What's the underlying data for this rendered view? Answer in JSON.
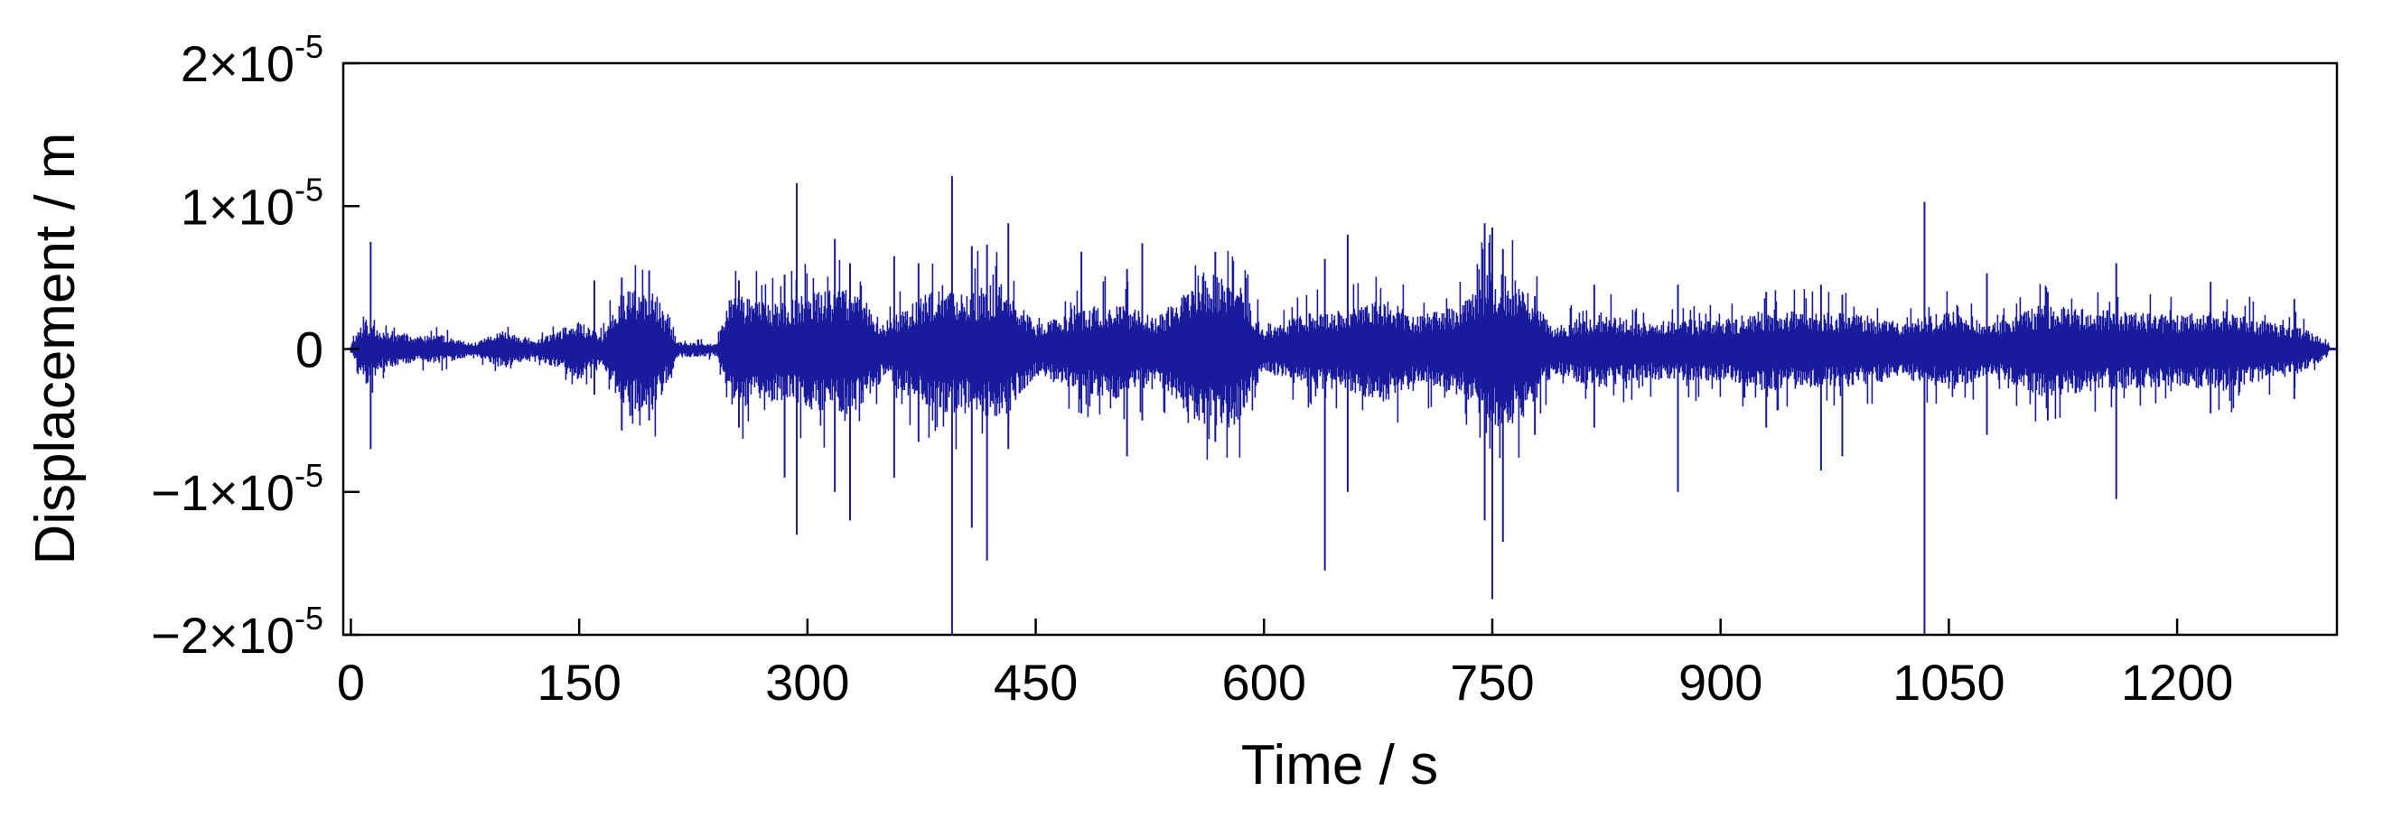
{
  "chart_data": {
    "type": "line",
    "title": "",
    "xlabel": "Time / s",
    "ylabel": "Displacement / m",
    "xlim": [
      -5,
      1305
    ],
    "ylim": [
      -2e-05,
      2e-05
    ],
    "grid": false,
    "legend": "none",
    "line_color": "#1a1a9c",
    "x_ticks": [
      {
        "value": 0,
        "label": "0"
      },
      {
        "value": 150,
        "label": "150"
      },
      {
        "value": 300,
        "label": "300"
      },
      {
        "value": 450,
        "label": "450"
      },
      {
        "value": 600,
        "label": "600"
      },
      {
        "value": 750,
        "label": "750"
      },
      {
        "value": 900,
        "label": "900"
      },
      {
        "value": 1050,
        "label": "1050"
      },
      {
        "value": 1200,
        "label": "1200"
      }
    ],
    "y_ticks": [
      {
        "value": 2e-05,
        "mantissa": "2",
        "times": "×10",
        "exp": "-5"
      },
      {
        "value": 1e-05,
        "mantissa": "1",
        "times": "×10",
        "exp": "-5"
      },
      {
        "value": 0,
        "mantissa": "0",
        "times": "",
        "exp": ""
      },
      {
        "value": -1e-05,
        "mantissa": "−1",
        "times": "×10",
        "exp": "-5"
      },
      {
        "value": -2e-05,
        "mantissa": "−2",
        "times": "×10",
        "exp": "-5"
      }
    ],
    "envelope": {
      "time_s": [
        0,
        10,
        20,
        40,
        60,
        80,
        100,
        120,
        150,
        165,
        180,
        200,
        215,
        240,
        250,
        280,
        300,
        330,
        350,
        380,
        400,
        420,
        430,
        450,
        480,
        500,
        530,
        560,
        580,
        600,
        630,
        650,
        680,
        700,
        730,
        750,
        770,
        790,
        820,
        850,
        880,
        900,
        930,
        960,
        990,
        1020,
        1050,
        1080,
        1110,
        1140,
        1170,
        1200,
        1230,
        1260,
        1280,
        1295,
        1300
      ],
      "upper_m": [
        3e-07,
        2.2e-06,
        1.2e-06,
        9e-07,
        1e-06,
        4e-07,
        1.3e-06,
        5e-07,
        2e-06,
        9e-07,
        4.6e-06,
        4e-06,
        5e-07,
        4e-07,
        4e-06,
        3.2e-06,
        4e-06,
        4.3e-06,
        1.9e-06,
        4.1e-06,
        4e-06,
        4.5e-06,
        4.6e-06,
        1.7e-06,
        2.7e-06,
        3.4e-06,
        2.2e-06,
        5.6e-06,
        5.3e-06,
        1.4e-06,
        2.6e-06,
        2.7e-06,
        3.6e-06,
        2.3e-06,
        3.1e-06,
        5.6e-06,
        4.6e-06,
        1.6e-06,
        2.6e-06,
        1.9e-06,
        2.1e-06,
        2e-06,
        2.8e-06,
        2.6e-06,
        2.5e-06,
        1.9e-06,
        2.7e-06,
        1.9e-06,
        3.1e-06,
        2.9e-06,
        2.6e-06,
        2.4e-06,
        2.8e-06,
        2e-06,
        1.6e-06,
        8e-07,
        2e-07
      ],
      "lower_m": [
        -3e-07,
        -2.6e-06,
        -1.4e-06,
        -1e-06,
        -1e-06,
        -5e-07,
        -1.4e-06,
        -6e-07,
        -2.2e-06,
        -1e-06,
        -4.8e-06,
        -4.3e-06,
        -6e-07,
        -5e-07,
        -4.2e-06,
        -3.6e-06,
        -4.2e-06,
        -4.6e-06,
        -2.1e-06,
        -4.4e-06,
        -4.5e-06,
        -4.8e-06,
        -4.8e-06,
        -1.9e-06,
        -3e-06,
        -3.6e-06,
        -2.4e-06,
        -5.5e-06,
        -5.7e-06,
        -1.6e-06,
        -2.8e-06,
        -2.9e-06,
        -3.8e-06,
        -2.5e-06,
        -3.3e-06,
        -5.8e-06,
        -4.9e-06,
        -1.8e-06,
        -2.8e-06,
        -2.1e-06,
        -2.3e-06,
        -2.2e-06,
        -3e-06,
        -2.8e-06,
        -2.7e-06,
        -2.1e-06,
        -2.9e-06,
        -2.1e-06,
        -3.3e-06,
        -3.1e-06,
        -2.8e-06,
        -2.6e-06,
        -3e-06,
        -2.2e-06,
        -1.8e-06,
        -9e-07,
        -2e-07
      ]
    },
    "spikes": [
      {
        "t": 13,
        "max": 7.5e-06,
        "min": -7e-06
      },
      {
        "t": 160,
        "max": 4.8e-06,
        "min": -3.2e-06
      },
      {
        "t": 178,
        "max": 5e-06,
        "min": -5.7e-06
      },
      {
        "t": 196,
        "max": 5.5e-06,
        "min": -5e-06
      },
      {
        "t": 255,
        "max": 4.8e-06,
        "min": -5.5e-06
      },
      {
        "t": 285,
        "max": 5.2e-06,
        "min": -9e-06
      },
      {
        "t": 293,
        "max": 1.16e-05,
        "min": -1.3e-05
      },
      {
        "t": 318,
        "max": 7.7e-06,
        "min": -1e-05
      },
      {
        "t": 328,
        "max": 6e-06,
        "min": -1.2e-05
      },
      {
        "t": 357,
        "max": 6.5e-06,
        "min": -9e-06
      },
      {
        "t": 373,
        "max": 6e-06,
        "min": -6.5e-06
      },
      {
        "t": 395,
        "max": 1.21e-05,
        "min": -2e-05
      },
      {
        "t": 408,
        "max": 7.2e-06,
        "min": -1.25e-05
      },
      {
        "t": 418,
        "max": 7.3e-06,
        "min": -1.48e-05
      },
      {
        "t": 432,
        "max": 8.8e-06,
        "min": -7e-06
      },
      {
        "t": 480,
        "max": 6.8e-06,
        "min": -4.5e-06
      },
      {
        "t": 510,
        "max": 5.6e-06,
        "min": -7.5e-06
      },
      {
        "t": 520,
        "max": 7.4e-06,
        "min": -5e-06
      },
      {
        "t": 568,
        "max": 6.8e-06,
        "min": -6.5e-06
      },
      {
        "t": 640,
        "max": 6.3e-06,
        "min": -1.55e-05
      },
      {
        "t": 655,
        "max": 8e-06,
        "min": -1e-05
      },
      {
        "t": 745,
        "max": 8.8e-06,
        "min": -1.2e-05
      },
      {
        "t": 750,
        "max": 8.5e-06,
        "min": -1.75e-05
      },
      {
        "t": 757,
        "max": 7e-06,
        "min": -1.35e-05
      },
      {
        "t": 778,
        "max": 3.7e-06,
        "min": -6e-06
      },
      {
        "t": 817,
        "max": 4.5e-06,
        "min": -5.5e-06
      },
      {
        "t": 872,
        "max": 4.5e-06,
        "min": -1e-05
      },
      {
        "t": 930,
        "max": 4e-06,
        "min": -5.5e-06
      },
      {
        "t": 966,
        "max": 4.5e-06,
        "min": -8.5e-06
      },
      {
        "t": 980,
        "max": 3.8e-06,
        "min": -7.5e-06
      },
      {
        "t": 1034,
        "max": 1.03e-05,
        "min": -2e-05
      },
      {
        "t": 1075,
        "max": 5.3e-06,
        "min": -6e-06
      },
      {
        "t": 1115,
        "max": 4e-06,
        "min": -5e-06
      },
      {
        "t": 1160,
        "max": 6e-06,
        "min": -1.05e-05
      },
      {
        "t": 1222,
        "max": 4.7e-06,
        "min": -4.5e-06
      },
      {
        "t": 1277,
        "max": 3.5e-06,
        "min": -3.5e-06
      }
    ]
  }
}
